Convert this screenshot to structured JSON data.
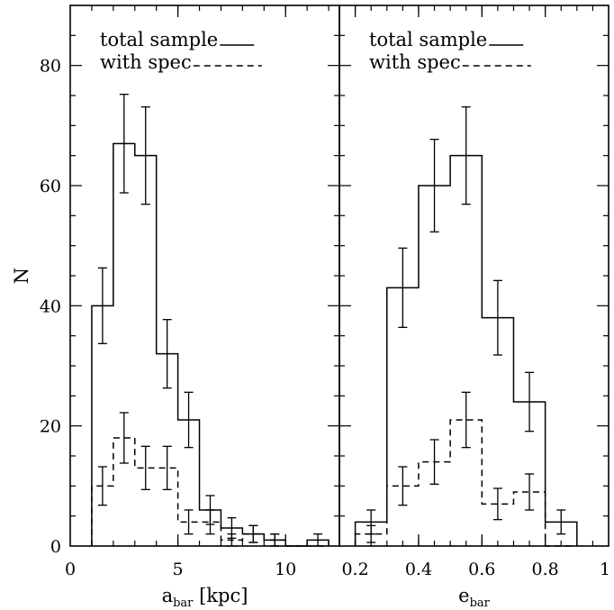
{
  "chart_data": {
    "type": "histogram",
    "ylabel": "N",
    "ylim": [
      0,
      90
    ],
    "yticks": [
      0,
      20,
      40,
      60,
      80
    ],
    "ytick_labels": [
      "0",
      "20",
      "40",
      "60",
      "80"
    ],
    "series_styles": {
      "total": "solid",
      "spec": "dashed"
    },
    "panels": [
      {
        "xlabel_main": "a",
        "xlabel_sub": "bar",
        "xlabel_rest": " [kpc]",
        "xlim": [
          0,
          12.5
        ],
        "xticks": [
          0,
          5,
          10
        ],
        "xtick_labels": [
          "0",
          "5",
          "10"
        ],
        "minor_step": 1,
        "legend": {
          "total": "total sample",
          "spec": "with spec"
        },
        "bin_edges": [
          1,
          2,
          3,
          4,
          5,
          6,
          7,
          8,
          9,
          10,
          11,
          12
        ],
        "total": {
          "counts": [
            40,
            67,
            65,
            32,
            21,
            6,
            3,
            2,
            1,
            0,
            1
          ],
          "errors": [
            6.3,
            8.2,
            8.1,
            5.7,
            4.6,
            2.4,
            1.7,
            1.4,
            1.0,
            0,
            1.0
          ]
        },
        "spec": {
          "counts": [
            10,
            18,
            13,
            13,
            4,
            4,
            1,
            2,
            1,
            0,
            0
          ],
          "errors": [
            3.2,
            4.2,
            3.6,
            3.6,
            2.0,
            2.0,
            1.0,
            1.4,
            1.0,
            0,
            0
          ]
        }
      },
      {
        "xlabel_main": "e",
        "xlabel_sub": "bar",
        "xlabel_rest": "",
        "xlim": [
          0.15,
          1.0
        ],
        "xticks": [
          0.2,
          0.4,
          0.6,
          0.8,
          1.0
        ],
        "xtick_labels": [
          "0.2",
          "0.4",
          "0.6",
          "0.8",
          "1"
        ],
        "minor_step": 0.05,
        "legend": {
          "total": "total sample",
          "spec": "with spec"
        },
        "bin_edges": [
          0.2,
          0.3,
          0.4,
          0.5,
          0.6,
          0.7,
          0.8,
          0.9
        ],
        "total": {
          "counts": [
            4,
            43,
            60,
            65,
            38,
            24,
            4
          ],
          "errors": [
            2.0,
            6.6,
            7.7,
            8.1,
            6.2,
            4.9,
            2.0
          ]
        },
        "spec": {
          "counts": [
            2,
            10,
            14,
            21,
            7,
            9,
            0
          ],
          "errors": [
            1.4,
            3.2,
            3.7,
            4.6,
            2.6,
            3.0,
            0
          ]
        }
      }
    ]
  }
}
